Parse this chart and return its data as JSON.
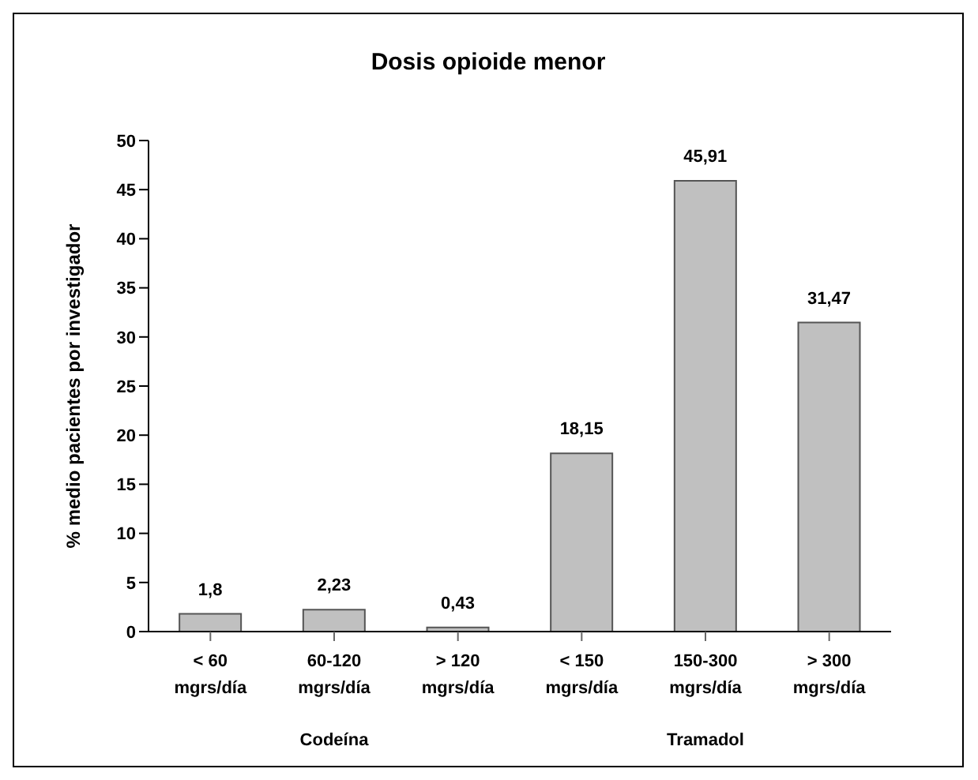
{
  "chart_data": {
    "type": "bar",
    "title": "Dosis opioide menor",
    "ylabel": "% medio pacientes por investigador",
    "categories": [
      "< 60 mgrs/día",
      "60-120 mgrs/día",
      "> 120 mgrs/día",
      "< 150 mgrs/día",
      "150-300 mgrs/día",
      "> 300 mgrs/día"
    ],
    "values": [
      1.8,
      2.23,
      0.43,
      18.15,
      45.91,
      31.47
    ],
    "value_labels": [
      "1,8",
      "2,23",
      "0,43",
      "18,15",
      "45,91",
      "31,47"
    ],
    "color": "#c0c0c0",
    "ylim": [
      0,
      50
    ],
    "yticks": [
      0,
      5,
      10,
      15,
      20,
      25,
      30,
      35,
      40,
      45,
      50
    ],
    "grid": false,
    "legend": false,
    "annotations": [
      "Codeína",
      "Tramadol"
    ]
  }
}
